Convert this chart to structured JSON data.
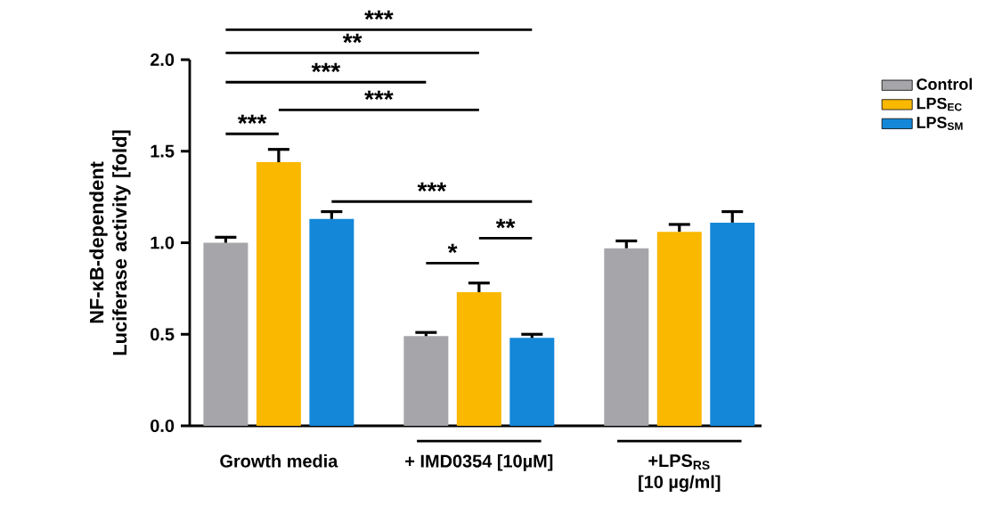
{
  "chart_data": {
    "type": "bar",
    "ylabel": "NF-κB-dependent Luciferase activity [fold]",
    "categories": [
      "Growth media",
      "+ IMD0354 [10µM]",
      "+LPS$_{RS}$ [10 µg/ml]"
    ],
    "series": [
      {
        "name": "Control",
        "color": "#a6a6aa",
        "values": [
          1.0,
          0.49,
          0.97
        ],
        "errors": [
          [
            1.0,
            1.03
          ],
          [
            0.49,
            0.51
          ],
          [
            0.97,
            1.01
          ]
        ]
      },
      {
        "name": "LPS$_{EC}$",
        "color": "#fbb800",
        "values": [
          1.44,
          0.73,
          1.06
        ],
        "errors": [
          [
            1.44,
            1.51
          ],
          [
            0.73,
            0.78
          ],
          [
            1.06,
            1.1
          ]
        ]
      },
      {
        "name": "LPS$_{SM}$",
        "color": "#1487d9",
        "values": [
          1.13,
          0.48,
          1.11
        ],
        "errors": [
          [
            1.13,
            1.17
          ],
          [
            0.48,
            0.5
          ],
          [
            1.11,
            1.17
          ]
        ]
      }
    ],
    "ylim": [
      0,
      2.0
    ],
    "yticks": [
      {
        "value": 0,
        "label": "0.0"
      },
      {
        "value": 0.5,
        "label": "0.5"
      },
      {
        "value": 1.0,
        "label": "1.0"
      },
      {
        "value": 1.5,
        "label": "1.5"
      },
      {
        "value": 2.0,
        "label": "2.0"
      }
    ],
    "legend": "top right",
    "annotations": [
      "***",
      "**",
      "***",
      "***",
      "***",
      "***",
      "*",
      "**"
    ]
  }
}
